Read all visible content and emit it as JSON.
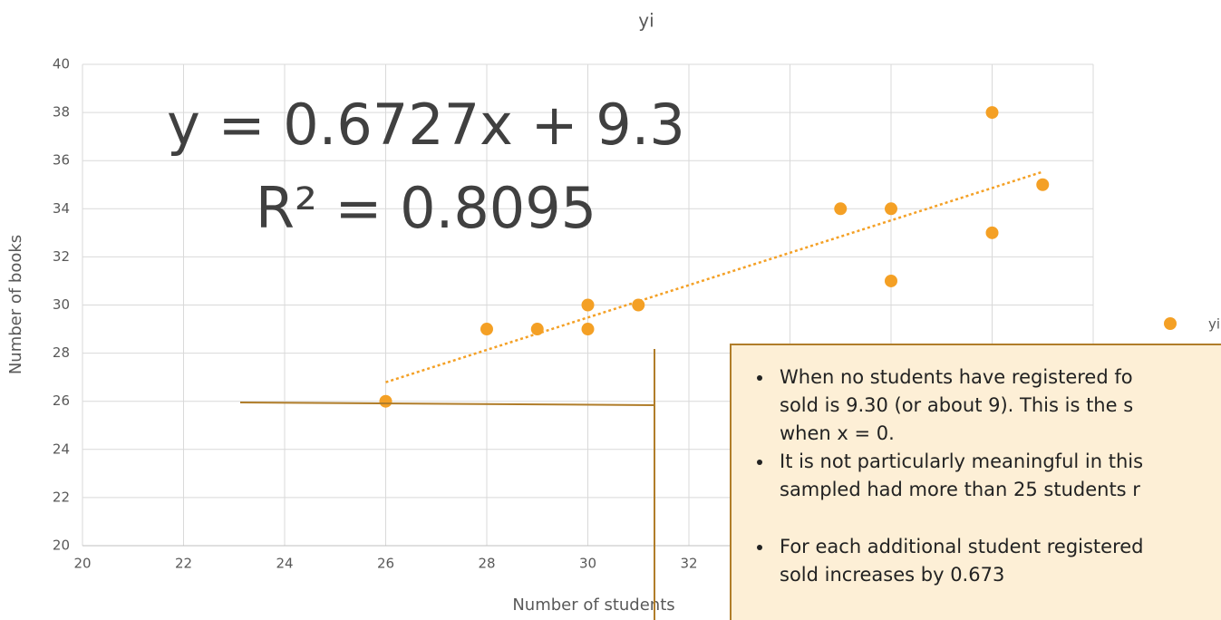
{
  "chart_data": {
    "type": "scatter",
    "title": "yi",
    "x_label": "Number of students",
    "y_label": "Number of books",
    "series": [
      {
        "name": "yi",
        "color": "#f4a025",
        "x": [
          26,
          28,
          29,
          30,
          30,
          31,
          35,
          36,
          36,
          38,
          38,
          39
        ],
        "values": [
          26,
          29,
          29,
          30,
          29,
          30,
          34,
          34,
          31,
          38,
          33,
          35
        ]
      }
    ],
    "trendline": {
      "equation": "y = 0.6727x + 9.3",
      "r_squared": "R² = 0.8095",
      "slope": 0.6727,
      "intercept": 9.3,
      "color": "#f4a025"
    },
    "xlim": [
      20,
      40
    ],
    "xticks": [
      20,
      22,
      24,
      26,
      28,
      30,
      32,
      34,
      36,
      38,
      40
    ],
    "ylim": [
      20,
      40
    ],
    "yticks": [
      20,
      22,
      24,
      26,
      28,
      30,
      32,
      34,
      36,
      38,
      40
    ],
    "grid": true,
    "legend": "right",
    "annotation": {
      "bullets": [
        [
          "When no students have registered fo",
          "sold is 9.30 (or about 9). This is the s",
          "when x = 0."
        ],
        [
          "It is not particularly meaningful in this",
          "sampled had more than 25 students r"
        ],
        [
          "For each additional student registered",
          "sold increases by 0.673"
        ]
      ]
    }
  }
}
